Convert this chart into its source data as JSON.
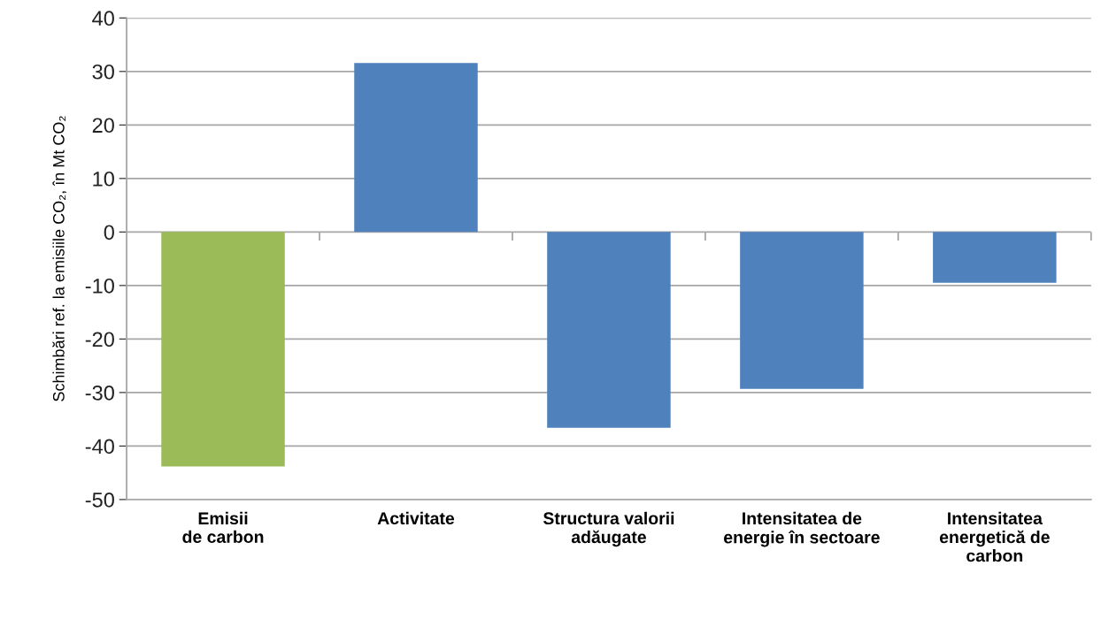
{
  "chart_data": {
    "type": "bar",
    "ylabel": "Schimbări ref. la emisiile CO₂, în Mt CO₂",
    "categories": [
      "Emisii\nde carbon",
      "Activitate",
      "Structura valorii\nadăugate",
      "Intensitatea de\nenergie în sectoare",
      "Intensitatea\nenergetică de\ncarbon"
    ],
    "values": [
      -43.8,
      31.6,
      -36.6,
      -29.3,
      -9.5
    ],
    "colors": [
      "#9bbb59",
      "#4f81bd",
      "#4f81bd",
      "#4f81bd",
      "#4f81bd"
    ],
    "ylim": [
      -50,
      40
    ],
    "yticks": [
      -50,
      -40,
      -30,
      -20,
      -10,
      0,
      10,
      20,
      30,
      40
    ],
    "grid": "y"
  }
}
